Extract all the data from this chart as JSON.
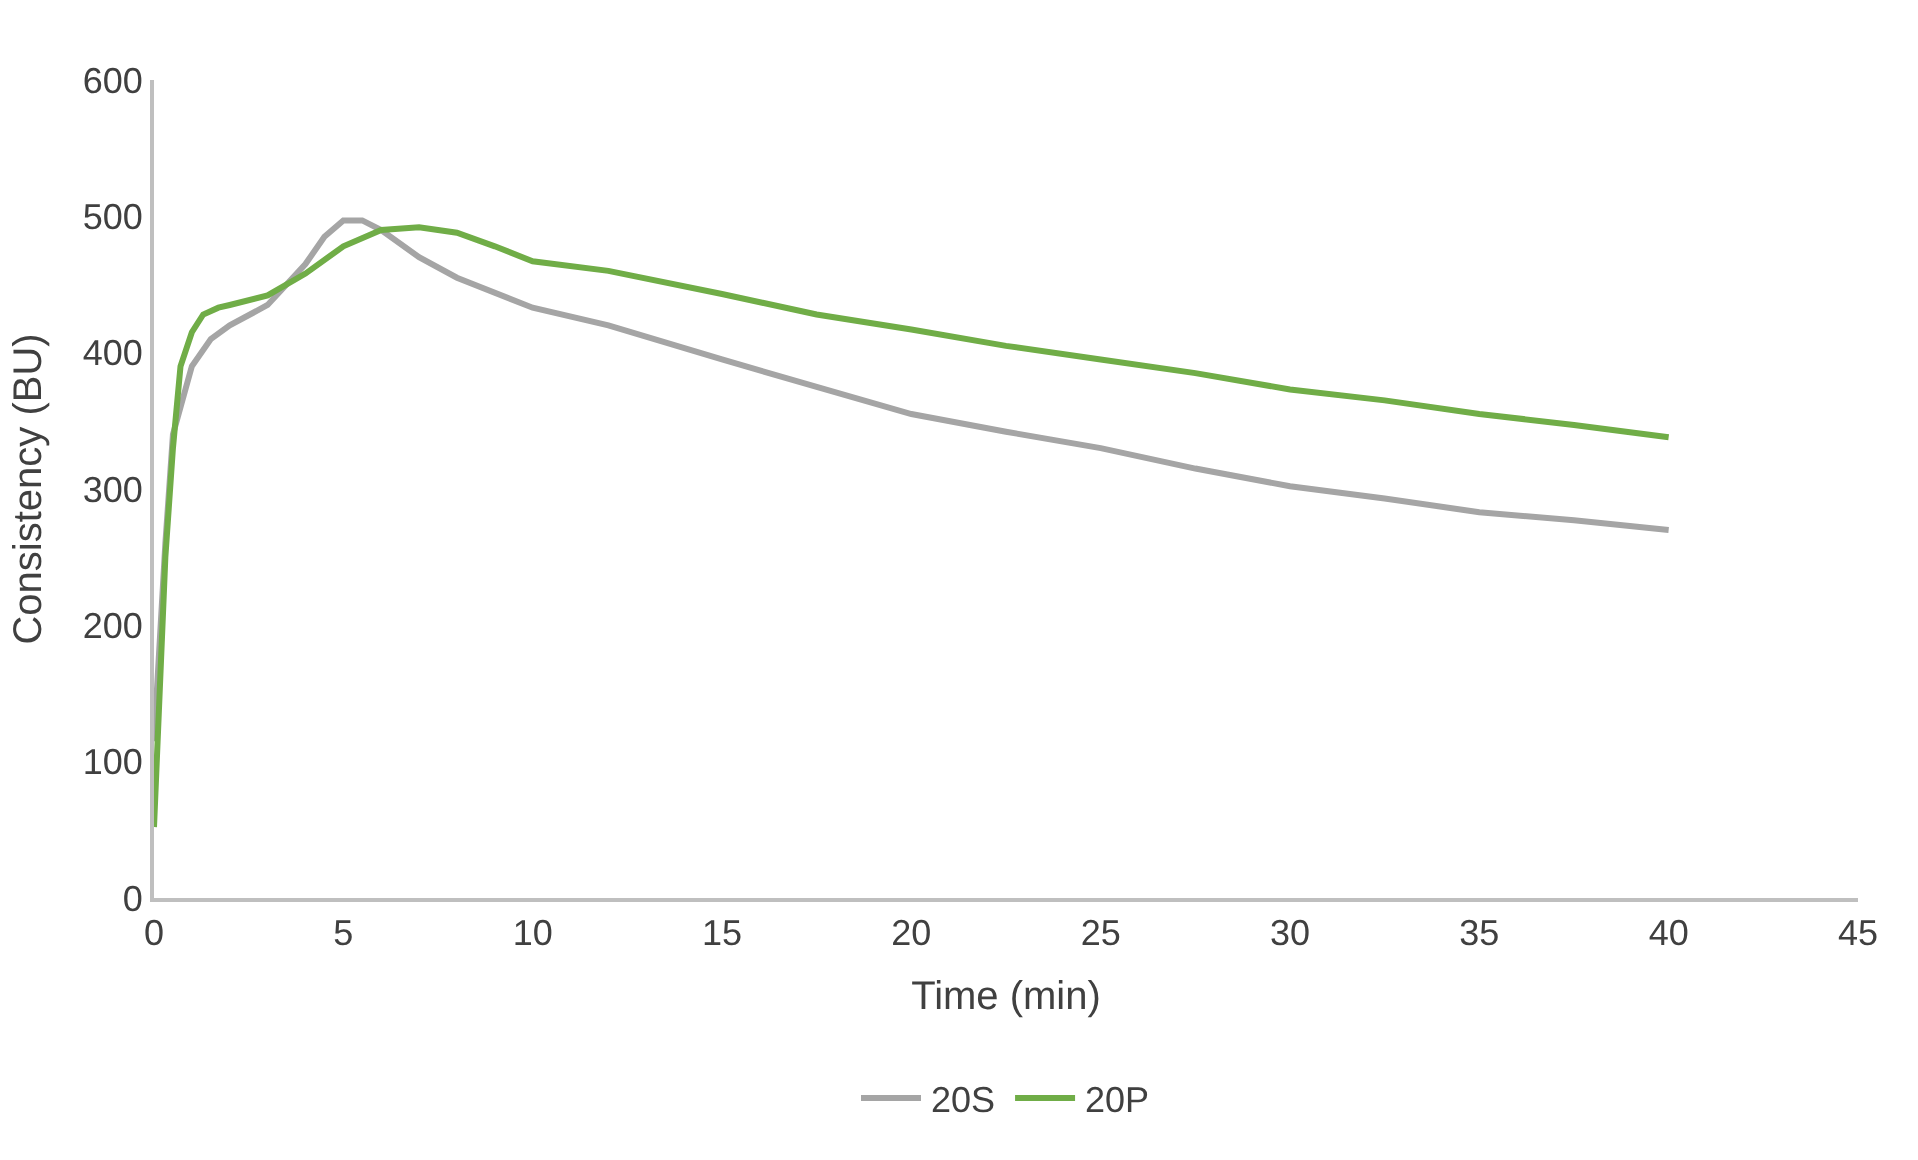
{
  "chart_data": {
    "type": "line",
    "xlabel": "Time (min)",
    "ylabel": "Consistency (BU)",
    "xlim": [
      0,
      45
    ],
    "xticks": [
      0,
      5,
      10,
      15,
      20,
      25,
      30,
      35,
      40,
      45
    ],
    "ylim": [
      0,
      600
    ],
    "yticks": [
      0,
      100,
      200,
      300,
      400,
      500,
      600
    ],
    "legend": "bottom",
    "marker": "none",
    "line_style": "solid",
    "series": [
      {
        "name": "20S",
        "color": "#a5a5a5",
        "x": [
          0,
          0.3,
          0.5,
          0.8,
          1,
          1.5,
          2,
          3,
          4,
          4.5,
          5,
          5.5,
          6,
          7,
          8,
          10,
          12,
          15,
          17.5,
          20,
          22.5,
          25,
          27.5,
          30,
          32.5,
          35,
          37.5,
          40
        ],
        "values": [
          115,
          260,
          340,
          370,
          390,
          410,
          420,
          435,
          465,
          485,
          497,
          497,
          490,
          470,
          455,
          433,
          420,
          395,
          375,
          355,
          342,
          330,
          315,
          302,
          293,
          283,
          277,
          270
        ]
      },
      {
        "name": "20P",
        "color": "#70ad47",
        "x": [
          0,
          0.3,
          0.5,
          0.7,
          1,
          1.3,
          1.7,
          2,
          3,
          4,
          5,
          6,
          7,
          8,
          9,
          10,
          12,
          15,
          17.5,
          20,
          22.5,
          25,
          27.5,
          30,
          32.5,
          35,
          37.5,
          40
        ],
        "values": [
          52,
          250,
          330,
          390,
          415,
          428,
          433,
          435,
          442,
          458,
          478,
          490,
          492,
          488,
          478,
          467,
          460,
          443,
          428,
          417,
          405,
          395,
          385,
          373,
          365,
          355,
          347,
          338
        ]
      }
    ]
  }
}
